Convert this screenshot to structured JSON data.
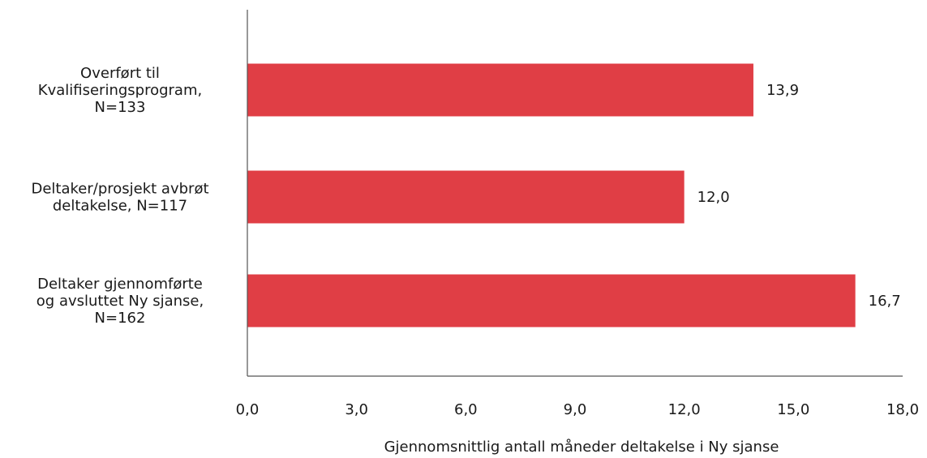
{
  "chart_data": {
    "type": "bar",
    "orientation": "horizontal",
    "title": "",
    "xlabel": "Gjennomsnittlig antall måneder deltakelse i Ny sjanse",
    "ylabel": "",
    "categories": [
      [
        "Overført til",
        "Kvalifiseringsprogram,",
        "N=133"
      ],
      [
        "Deltaker/prosjekt avbrøt",
        "deltakelse, N=117"
      ],
      [
        "Deltaker gjennomførte",
        "og avsluttet Ny sjanse,",
        "N=162"
      ]
    ],
    "values": [
      13.9,
      12.0,
      16.7
    ],
    "value_labels": [
      "13,9",
      "12,0",
      "16,7"
    ],
    "xlim": [
      0,
      18
    ],
    "xticks": [
      0,
      3,
      6,
      9,
      12,
      15,
      18
    ],
    "xtick_labels": [
      "0,0",
      "3,0",
      "6,0",
      "9,0",
      "12,0",
      "15,0",
      "18,0"
    ],
    "bar_color": "#e03e45",
    "axis_color": "#555555",
    "grid": false,
    "legend": "none"
  }
}
